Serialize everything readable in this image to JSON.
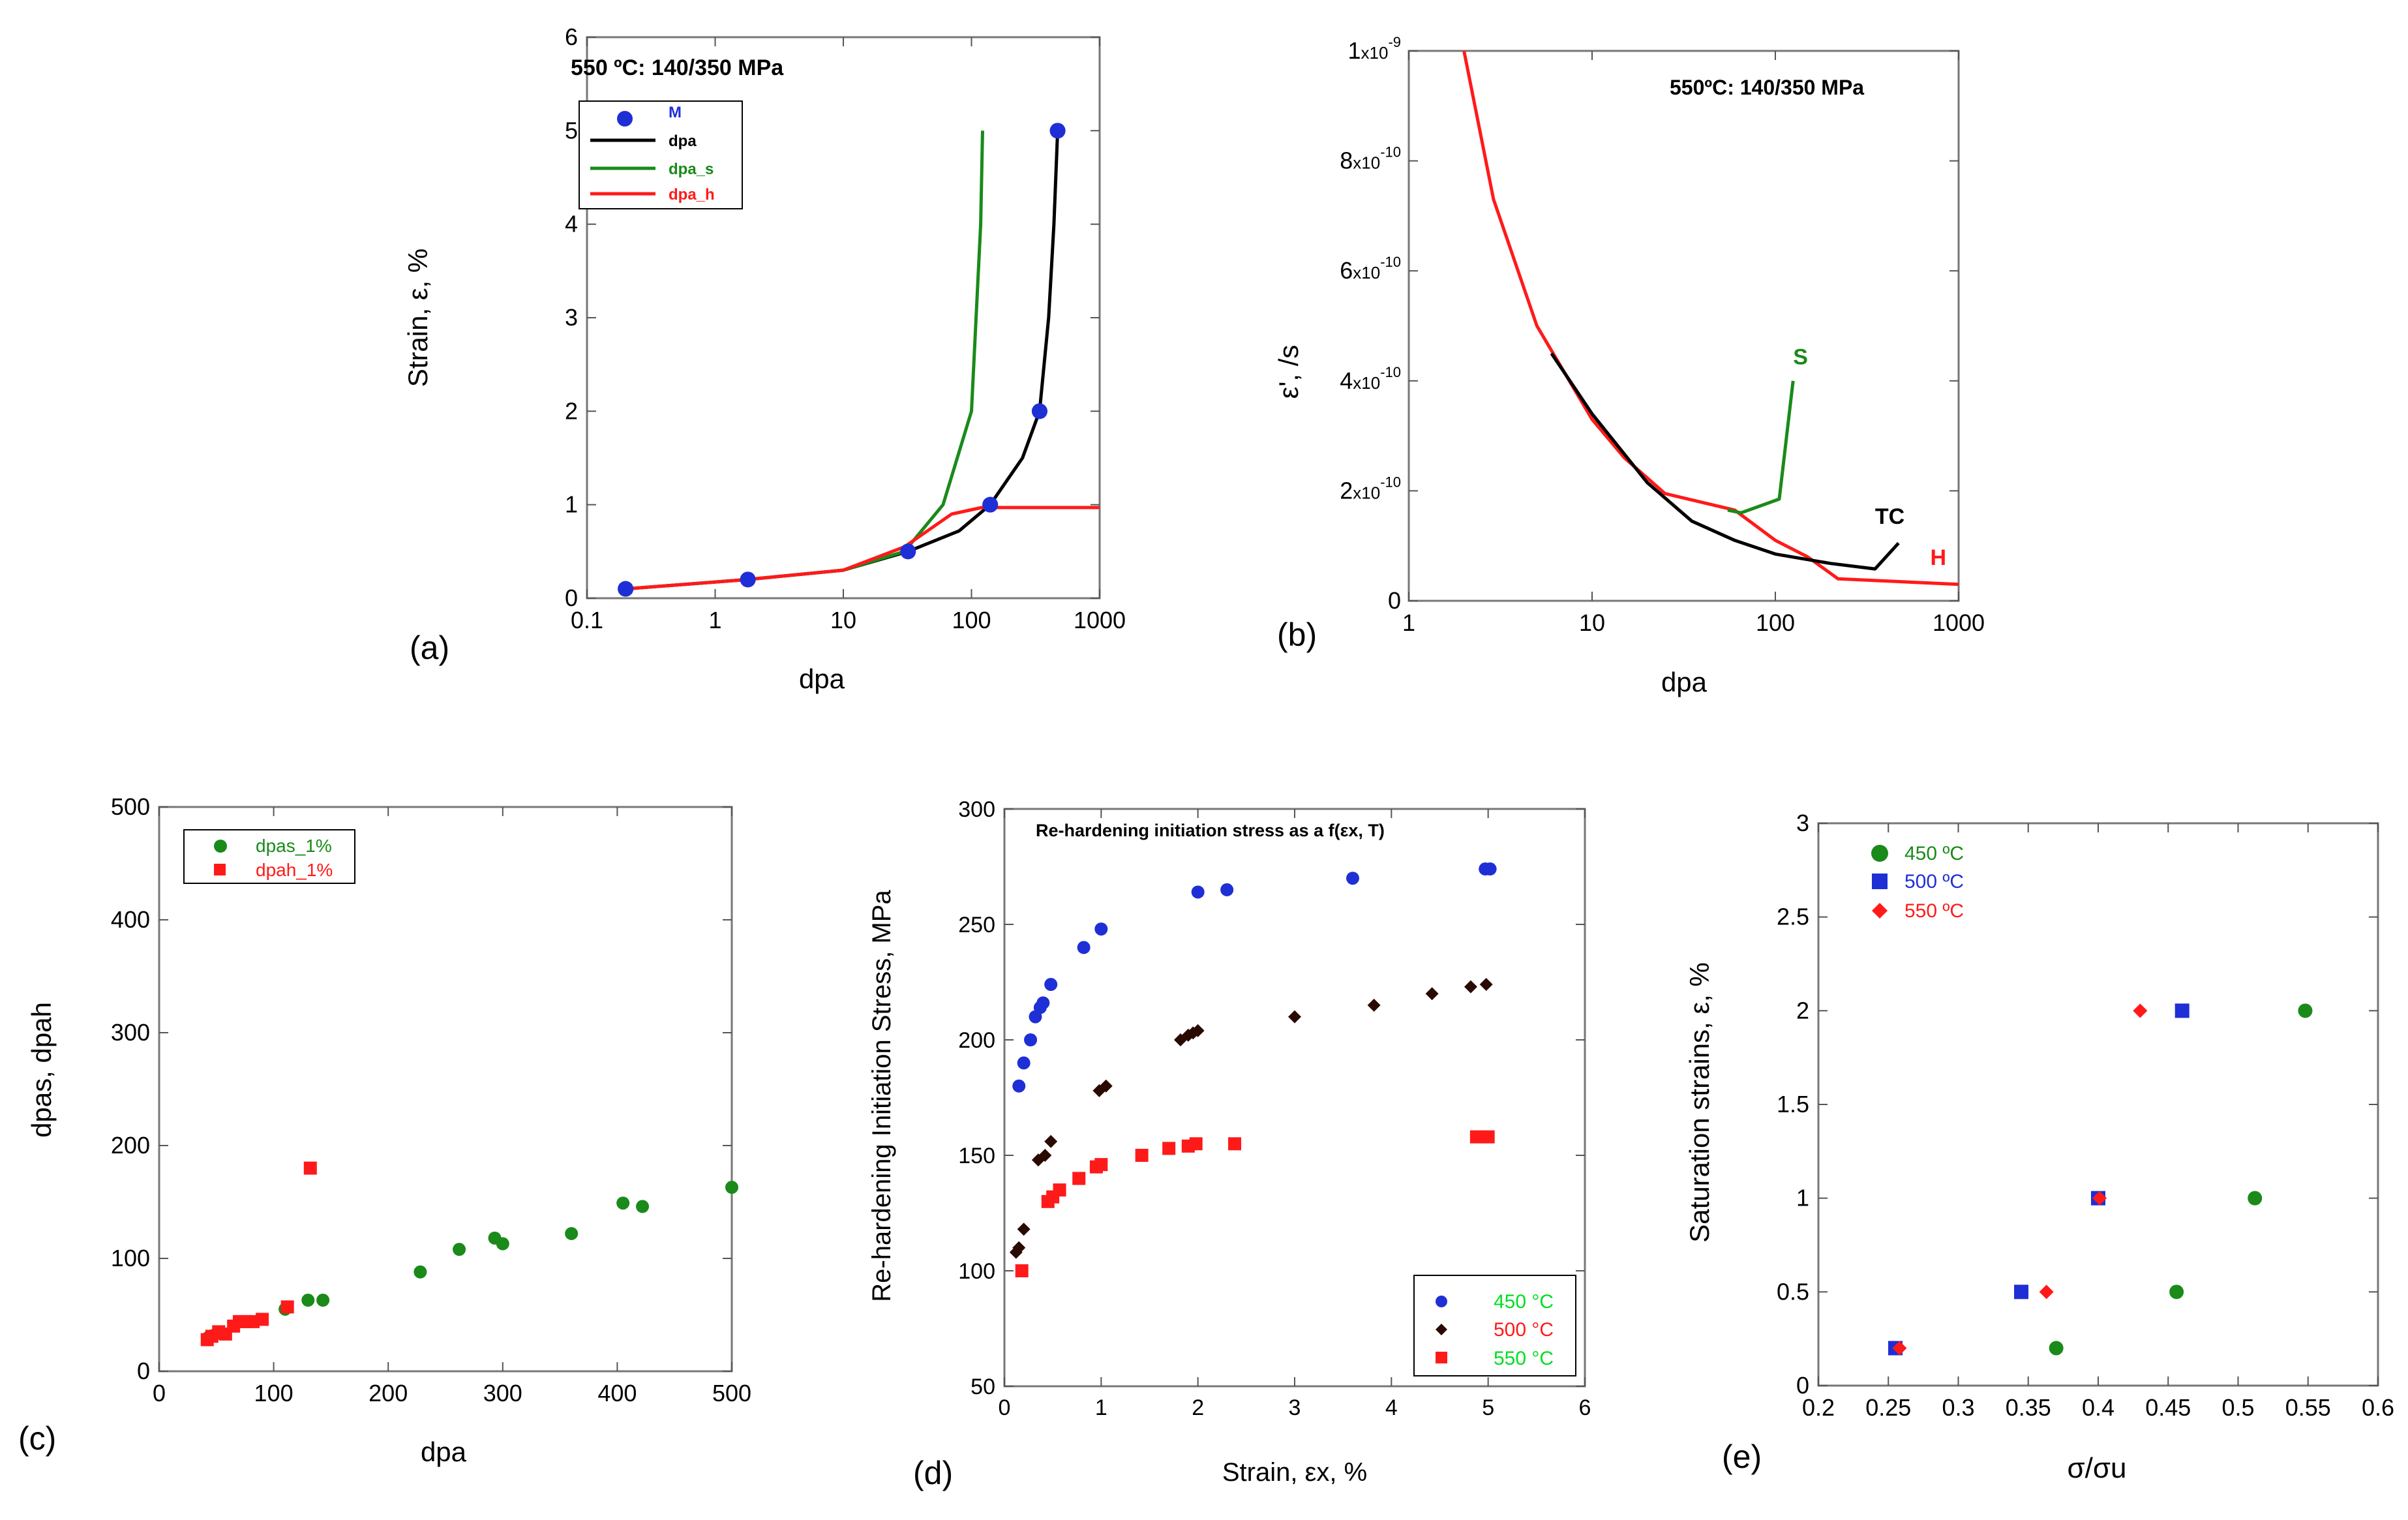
{
  "panel_labels": [
    "(a)",
    "(b)",
    "(c)",
    "(d)",
    "(e)"
  ],
  "chart_data": [
    {
      "id": "a",
      "type": "line",
      "title": "550 ºC: 140/350 MPa",
      "xlabel": "dpa",
      "ylabel": "Strain, ε, %",
      "xscale": "log",
      "xlim": [
        0.1,
        1000
      ],
      "ylim": [
        0,
        6
      ],
      "xticks": [
        0.1,
        1,
        10,
        100,
        1000
      ],
      "xtick_labels": [
        "0.1",
        "1",
        "10",
        "100",
        "1000"
      ],
      "yticks": [
        0,
        1,
        2,
        3,
        4,
        5,
        6
      ],
      "ytick_labels": [
        "0",
        "1",
        "2",
        "3",
        "4",
        "5",
        "6"
      ],
      "legend_position": "top-left",
      "series": [
        {
          "name": "M",
          "kind": "points",
          "color": "#1f2fd6",
          "x": [
            0.2,
            1.8,
            32,
            140,
            340,
            470
          ],
          "y": [
            0.1,
            0.2,
            0.5,
            1.0,
            2.0,
            5.0
          ]
        },
        {
          "name": "dpa",
          "kind": "line",
          "color": "#000000",
          "x": [
            0.2,
            1.8,
            10,
            32,
            80,
            140,
            250,
            340,
            400,
            440,
            470
          ],
          "y": [
            0.1,
            0.2,
            0.3,
            0.5,
            0.72,
            1.0,
            1.5,
            2.0,
            3.0,
            4.0,
            5.0
          ]
        },
        {
          "name": "dpa_s",
          "kind": "line",
          "color": "#1a8a1a",
          "x": [
            0.2,
            1.8,
            10,
            30,
            60,
            100,
            118,
            122
          ],
          "y": [
            0.1,
            0.2,
            0.3,
            0.5,
            1.0,
            2.0,
            4.0,
            5.0
          ]
        },
        {
          "name": "dpa_h",
          "kind": "line",
          "color": "#ff1a1a",
          "x": [
            0.2,
            1.8,
            10,
            30,
            70,
            120,
            300,
            1000
          ],
          "y": [
            0.1,
            0.2,
            0.3,
            0.55,
            0.9,
            0.97,
            0.97,
            0.97
          ]
        }
      ]
    },
    {
      "id": "b",
      "type": "line",
      "title": "550ºC: 140/350 MPa",
      "xlabel": "dpa",
      "ylabel": "ε', /s",
      "xscale": "log",
      "xlim": [
        1,
        1000
      ],
      "ylim": [
        0,
        1e-09
      ],
      "xticks": [
        1,
        10,
        100,
        1000
      ],
      "xtick_labels": [
        "1",
        "10",
        "100",
        "1000"
      ],
      "yticks": [
        0,
        2e-10,
        4e-10,
        6e-10,
        8e-10,
        1e-09
      ],
      "ytick_labels": [
        {
          "mantissa": "0",
          "exponent": ""
        },
        {
          "mantissa": "2",
          "exponent": "-10"
        },
        {
          "mantissa": "4",
          "exponent": "-10"
        },
        {
          "mantissa": "6",
          "exponent": "-10"
        },
        {
          "mantissa": "8",
          "exponent": "-10"
        },
        {
          "mantissa": "1",
          "exponent": "-9"
        }
      ],
      "annotations": [
        {
          "text": "S",
          "color": "#1a8a1a",
          "x": 125,
          "y": 4.3e-10
        },
        {
          "text": "TC",
          "color": "#000000",
          "x": 350,
          "y": 1.4e-10
        },
        {
          "text": "H",
          "color": "#ff1a1a",
          "x": 700,
          "y": 6.5e-11
        }
      ],
      "series": [
        {
          "name": "H",
          "kind": "line",
          "color": "#ff1a1a",
          "x": [
            2,
            2.9,
            5,
            10,
            15,
            25,
            60,
            100,
            150,
            220,
            1000
          ],
          "y": [
            1e-09,
            7.3e-10,
            5e-10,
            3.3e-10,
            2.6e-10,
            1.95e-10,
            1.65e-10,
            1.1e-10,
            8e-11,
            4e-11,
            3e-11
          ]
        },
        {
          "name": "TC",
          "kind": "line",
          "color": "#000000",
          "x": [
            6,
            10,
            20,
            35,
            60,
            100,
            200,
            350,
            470
          ],
          "y": [
            4.5e-10,
            3.4e-10,
            2.15e-10,
            1.45e-10,
            1.1e-10,
            8.5e-11,
            6.8e-11,
            5.8e-11,
            1.05e-10
          ]
        },
        {
          "name": "S",
          "kind": "line",
          "color": "#1a8a1a",
          "x": [
            55,
            65,
            105,
            125
          ],
          "y": [
            1.65e-10,
            1.6e-10,
            1.85e-10,
            4e-10
          ]
        }
      ]
    },
    {
      "id": "c",
      "type": "scatter",
      "xlabel": "dpa",
      "ylabel": "dpas, dpah",
      "xlim": [
        0,
        500
      ],
      "ylim": [
        0,
        500
      ],
      "xticks": [
        0,
        100,
        200,
        300,
        400,
        500
      ],
      "xtick_labels": [
        "0",
        "100",
        "200",
        "300",
        "400",
        "500"
      ],
      "yticks": [
        0,
        100,
        200,
        300,
        400,
        500
      ],
      "ytick_labels": [
        "0",
        "100",
        "200",
        "300",
        "400",
        "500"
      ],
      "legend_position": "top-left",
      "series": [
        {
          "name": "dpas_1%",
          "marker": "circle",
          "color": "#1a8a1a",
          "x": [
            43,
            48,
            110,
            130,
            143,
            228,
            262,
            293,
            300,
            360,
            405,
            422,
            500
          ],
          "y": [
            30,
            32,
            55,
            63,
            63,
            88,
            108,
            118,
            113,
            122,
            149,
            146,
            163
          ]
        },
        {
          "name": "dpah_1%",
          "marker": "square",
          "color": "#ff1a1a",
          "x": [
            42,
            46,
            52,
            58,
            65,
            70,
            75,
            82,
            90,
            112,
            132
          ],
          "y": [
            28,
            31,
            35,
            33,
            40,
            44,
            44,
            44,
            46,
            57,
            180
          ]
        }
      ]
    },
    {
      "id": "d",
      "type": "scatter",
      "title": "Re-hardening initiation stress as a f(εx, T)",
      "xlabel": "Strain, εx, %",
      "ylabel": "Re-hardening Initiation Stress, MPa",
      "xlim": [
        0,
        6
      ],
      "ylim": [
        50,
        300
      ],
      "xticks": [
        0,
        1,
        2,
        3,
        4,
        5,
        6
      ],
      "xtick_labels": [
        "0",
        "1",
        "2",
        "3",
        "4",
        "5",
        "6"
      ],
      "yticks": [
        50,
        100,
        150,
        200,
        250,
        300
      ],
      "ytick_labels": [
        "50",
        "100",
        "150",
        "200",
        "250",
        "300"
      ],
      "legend_position": "bottom-right",
      "series": [
        {
          "name": "450 °C",
          "marker": "circle",
          "color": "#1f2fd6",
          "label_color": "#00dd22",
          "x": [
            0.15,
            0.2,
            0.27,
            0.32,
            0.37,
            0.4,
            0.48,
            0.82,
            1.0,
            2.0,
            2.3,
            3.6,
            4.97,
            5.02
          ],
          "y": [
            180,
            190,
            200,
            210,
            214,
            216,
            224,
            240,
            248,
            264,
            265,
            270,
            274,
            274
          ]
        },
        {
          "name": "500 °C",
          "marker": "diamond",
          "color": "#2a0a00",
          "label_color": "#ff1a1a",
          "x": [
            0.12,
            0.15,
            0.2,
            0.35,
            0.42,
            0.48,
            0.98,
            1.05,
            1.82,
            1.9,
            1.95,
            2.0,
            3.0,
            3.82,
            4.42,
            4.82,
            4.98
          ],
          "y": [
            108,
            110,
            118,
            148,
            150,
            156,
            178,
            180,
            200,
            202,
            203,
            204,
            210,
            215,
            220,
            223,
            224
          ]
        },
        {
          "name": "550 °C",
          "marker": "square",
          "color": "#ff1a1a",
          "label_color": "#00dd22",
          "x": [
            0.18,
            0.45,
            0.5,
            0.57,
            0.77,
            0.95,
            1.0,
            1.42,
            1.7,
            1.9,
            1.98,
            2.38,
            4.88,
            5.0
          ],
          "y": [
            100,
            130,
            132,
            135,
            140,
            145,
            146,
            150,
            153,
            154,
            155,
            155,
            158,
            158
          ]
        }
      ]
    },
    {
      "id": "e",
      "type": "scatter",
      "xlabel": "σ/σu",
      "ylabel": "Saturation strains, ε, %",
      "xlim": [
        0.2,
        0.6
      ],
      "ylim": [
        0,
        3
      ],
      "xticks": [
        0.2,
        0.25,
        0.3,
        0.35,
        0.4,
        0.45,
        0.5,
        0.55,
        0.6
      ],
      "xtick_labels": [
        "0.2",
        "0.25",
        "0.3",
        "0.35",
        "0.4",
        "0.45",
        "0.5",
        "0.55",
        "0.6"
      ],
      "yticks": [
        0,
        0.5,
        1,
        1.5,
        2,
        2.5,
        3
      ],
      "ytick_labels": [
        "0",
        "0.5",
        "1",
        "1.5",
        "2",
        "2.5",
        "3"
      ],
      "legend_position": "top-left",
      "series": [
        {
          "name": "450 ºC",
          "marker": "circle",
          "color": "#1a8a1a",
          "x": [
            0.37,
            0.456,
            0.512,
            0.548
          ],
          "y": [
            0.2,
            0.5,
            1.0,
            2.0
          ]
        },
        {
          "name": "500 ºC",
          "marker": "square",
          "color": "#1f2fd6",
          "x": [
            0.255,
            0.345,
            0.4,
            0.46
          ],
          "y": [
            0.2,
            0.5,
            1.0,
            2.0
          ]
        },
        {
          "name": "550 ºC",
          "marker": "diamond",
          "color": "#ff1a1a",
          "x": [
            0.258,
            0.363,
            0.401,
            0.43
          ],
          "y": [
            0.2,
            0.5,
            1.0,
            2.0
          ]
        }
      ]
    }
  ]
}
